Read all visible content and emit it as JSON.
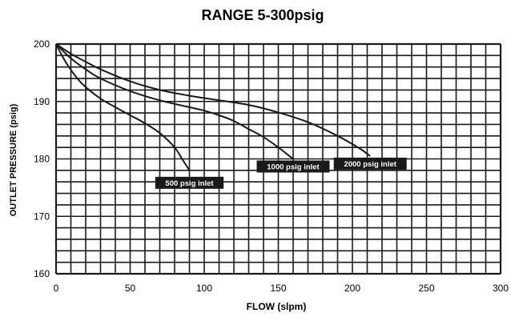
{
  "chart_data": {
    "type": "line",
    "title": "RANGE 5-300psig",
    "xlabel": "FLOW (slpm)",
    "ylabel": "OUTLET PRESSURE (psig)",
    "xlim": [
      0,
      300
    ],
    "ylim": [
      160,
      200
    ],
    "xticks": [
      0,
      50,
      100,
      150,
      200,
      250,
      300
    ],
    "yticks": [
      160,
      170,
      180,
      190,
      200
    ],
    "grid": true,
    "colors": {
      "line": "#1a1a1a",
      "grid": "#1a1a1a",
      "label_bg": "#1a1a1a",
      "label_text": "#ffffff"
    },
    "series": [
      {
        "name": "500 psig inlet",
        "x": [
          0,
          5,
          10,
          15,
          20,
          30,
          40,
          50,
          60,
          70,
          80,
          85,
          90
        ],
        "y": [
          200,
          197.5,
          195.5,
          193.8,
          192.5,
          190.5,
          189,
          187.6,
          186.2,
          184.5,
          182,
          180,
          178
        ]
      },
      {
        "name": "1000 psig inlet",
        "x": [
          0,
          10,
          20,
          30,
          50,
          70,
          90,
          100,
          110,
          120,
          130,
          140,
          150,
          155,
          160
        ],
        "y": [
          200,
          197.5,
          195.6,
          194,
          191.8,
          190.2,
          189,
          188.4,
          187.6,
          186.6,
          185.2,
          183.8,
          182,
          181,
          180
        ]
      },
      {
        "name": "2000 psig inlet",
        "x": [
          0,
          10,
          20,
          30,
          50,
          70,
          90,
          110,
          130,
          150,
          170,
          190,
          205,
          212
        ],
        "y": [
          200,
          198.3,
          196.9,
          195.6,
          193.5,
          192,
          191,
          190.2,
          189.4,
          188.1,
          186.4,
          184,
          181.8,
          180.5
        ]
      }
    ],
    "annotations": [
      {
        "text": "500 psig inlet",
        "series": 0
      },
      {
        "text": "1000 psig inlet",
        "series": 1
      },
      {
        "text": "2000 psig inlet",
        "series": 2
      }
    ]
  }
}
